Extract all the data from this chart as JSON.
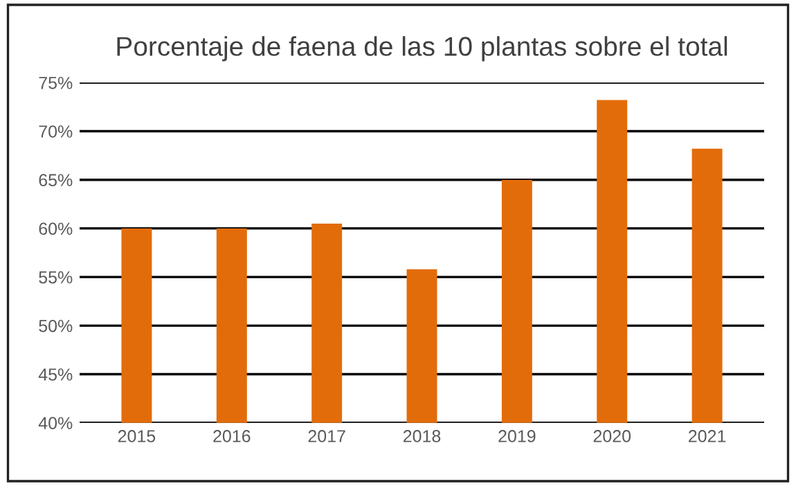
{
  "chart_data": {
    "type": "bar",
    "title": "Porcentaje de faena de las 10 plantas sobre el total",
    "categories": [
      "2015",
      "2016",
      "2017",
      "2018",
      "2019",
      "2020",
      "2021"
    ],
    "values": [
      60.0,
      60.0,
      60.5,
      55.8,
      65.0,
      73.2,
      68.2
    ],
    "color": "#e36c0a",
    "ylim": [
      40,
      75
    ],
    "yticks": [
      {
        "value": 40,
        "label": "40%"
      },
      {
        "value": 45,
        "label": "45%"
      },
      {
        "value": 50,
        "label": "50%"
      },
      {
        "value": 55,
        "label": "55%"
      },
      {
        "value": 60,
        "label": "60%"
      },
      {
        "value": 65,
        "label": "65%"
      },
      {
        "value": 70,
        "label": "70%"
      },
      {
        "value": 75,
        "label": "75%"
      }
    ],
    "grid": "y",
    "legend": false
  }
}
